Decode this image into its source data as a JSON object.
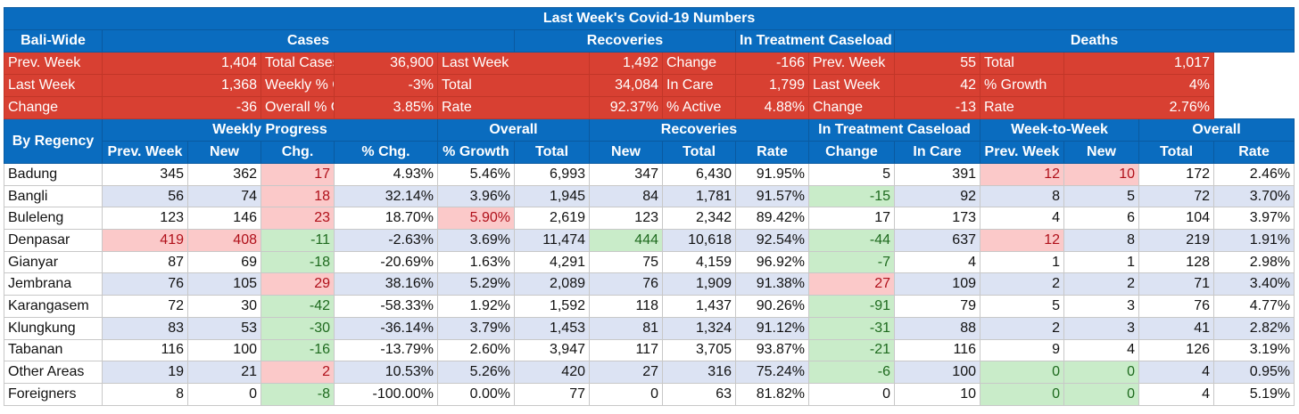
{
  "title": "Last Week's Covid-19 Numbers",
  "bali_wide": {
    "label": "Bali-Wide",
    "cases_header": "Cases",
    "recoveries_header": "Recoveries",
    "treatment_header": "In Treatment Caseload",
    "deaths_header": "Deaths",
    "rows": [
      {
        "c1l": "Prev. Week",
        "c1v": "1,404",
        "c2l": "Total Cases",
        "c2v": "36,900",
        "r_l": "Last Week",
        "r_v": "1,492",
        "t_l": "Change",
        "t_v": "-166",
        "d1l": "Prev. Week",
        "d1v": "55",
        "d2l": "Total",
        "d2v": "1,017"
      },
      {
        "c1l": "Last Week",
        "c1v": "1,368",
        "c2l": "Weekly % Change",
        "c2v": "-3%",
        "r_l": "Total",
        "r_v": "34,084",
        "t_l": "In Care",
        "t_v": "1,799",
        "d1l": "Last Week",
        "d1v": "42",
        "d2l": "% Growth",
        "d2v": "4%"
      },
      {
        "c1l": "Change",
        "c1v": "-36",
        "c2l": "Overall % Growth",
        "c2v": "3.85%",
        "r_l": "Rate",
        "r_v": "92.37%",
        "t_l": "% Active",
        "t_v": "4.88%",
        "d1l": "Change",
        "d1v": "-13",
        "d2l": "Rate",
        "d2v": "2.76%"
      }
    ]
  },
  "by_regency": {
    "label": "By Regency",
    "group_headers": {
      "weekly_progress": "Weekly Progress",
      "overall": "Overall",
      "recoveries": "Recoveries",
      "treatment": "In Treatment Caseload",
      "week_to_week": "Week-to-Week",
      "deaths_overall": "Overall"
    },
    "columns": [
      "Prev. Week",
      "New",
      "Chg.",
      "% Chg.",
      "% Growth",
      "Total",
      "New",
      "Total",
      "Rate",
      "Change",
      "In Care",
      "Prev. Week",
      "New",
      "Total",
      "Rate"
    ],
    "rows": [
      {
        "name": "Badung",
        "v": [
          "345",
          "362",
          "17",
          "4.93%",
          "5.46%",
          "6,993",
          "347",
          "6,430",
          "91.95%",
          "5",
          "391",
          "12",
          "10",
          "172",
          "2.46%"
        ]
      },
      {
        "name": "Bangli",
        "v": [
          "56",
          "74",
          "18",
          "32.14%",
          "3.96%",
          "1,945",
          "84",
          "1,781",
          "91.57%",
          "-15",
          "92",
          "8",
          "5",
          "72",
          "3.70%"
        ]
      },
      {
        "name": "Buleleng",
        "v": [
          "123",
          "146",
          "23",
          "18.70%",
          "5.90%",
          "2,619",
          "123",
          "2,342",
          "89.42%",
          "17",
          "173",
          "4",
          "6",
          "104",
          "3.97%"
        ]
      },
      {
        "name": "Denpasar",
        "v": [
          "419",
          "408",
          "-11",
          "-2.63%",
          "3.69%",
          "11,474",
          "444",
          "10,618",
          "92.54%",
          "-44",
          "637",
          "12",
          "8",
          "219",
          "1.91%"
        ]
      },
      {
        "name": "Gianyar",
        "v": [
          "87",
          "69",
          "-18",
          "-20.69%",
          "1.63%",
          "4,291",
          "75",
          "4,159",
          "96.92%",
          "-7",
          "4",
          "1",
          "1",
          "128",
          "2.98%"
        ]
      },
      {
        "name": "Jembrana",
        "v": [
          "76",
          "105",
          "29",
          "38.16%",
          "5.29%",
          "2,089",
          "76",
          "1,909",
          "91.38%",
          "27",
          "109",
          "2",
          "2",
          "71",
          "3.40%"
        ]
      },
      {
        "name": "Karangasem",
        "v": [
          "72",
          "30",
          "-42",
          "-58.33%",
          "1.92%",
          "1,592",
          "118",
          "1,437",
          "90.26%",
          "-91",
          "79",
          "5",
          "3",
          "76",
          "4.77%"
        ]
      },
      {
        "name": "Klungkung",
        "v": [
          "83",
          "53",
          "-30",
          "-36.14%",
          "3.79%",
          "1,453",
          "81",
          "1,324",
          "91.12%",
          "-31",
          "88",
          "2",
          "3",
          "41",
          "2.82%"
        ]
      },
      {
        "name": "Tabanan",
        "v": [
          "116",
          "100",
          "-16",
          "-13.79%",
          "2.60%",
          "3,947",
          "117",
          "3,705",
          "93.87%",
          "-21",
          "116",
          "9",
          "4",
          "126",
          "3.19%"
        ]
      },
      {
        "name": "Other Areas",
        "v": [
          "19",
          "21",
          "2",
          "10.53%",
          "5.26%",
          "420",
          "27",
          "316",
          "75.24%",
          "-6",
          "100",
          "0",
          "0",
          "4",
          "0.95%"
        ]
      },
      {
        "name": "Foreigners",
        "v": [
          "8",
          "0",
          "-8",
          "-100.00%",
          "0.00%",
          "77",
          "0",
          "63",
          "81.82%",
          "0",
          "10",
          "0",
          "0",
          "4",
          "5.19%"
        ]
      }
    ]
  }
}
